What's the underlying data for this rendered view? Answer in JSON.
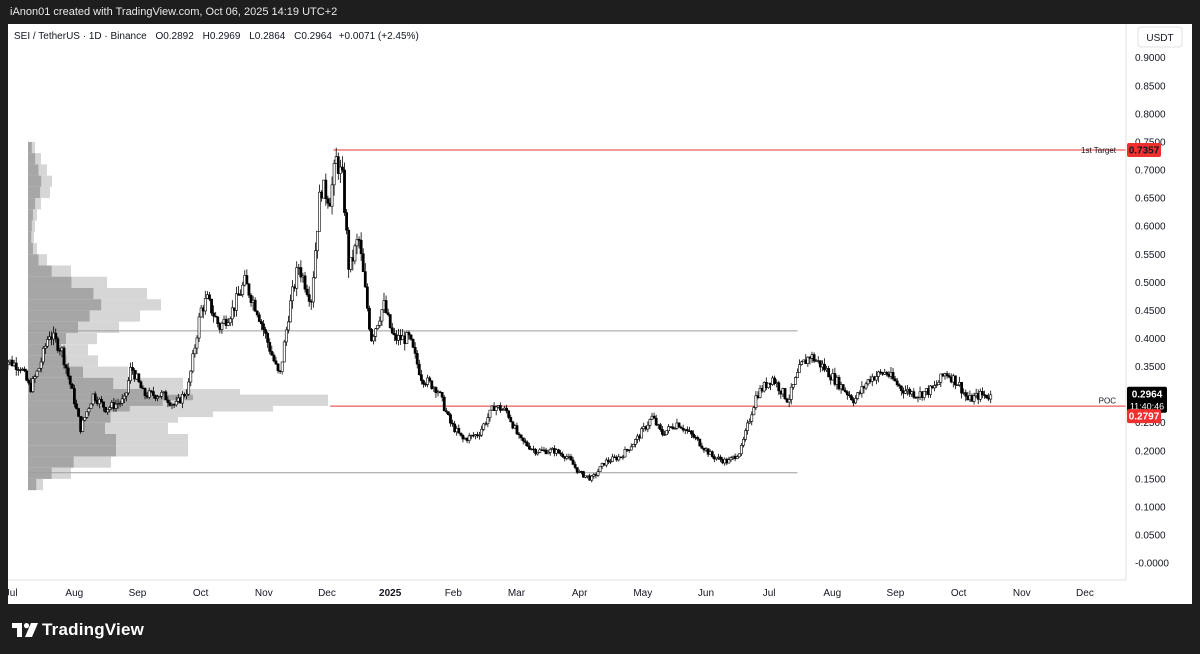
{
  "watermark": "iAnon01 created with TradingView.com, Oct 06, 2025 14:19 UTC+2",
  "brand": {
    "name": "TradingView",
    "logo_icon": "tradingview-logo-icon"
  },
  "colors": {
    "target_line": "#e53935",
    "poc_line": "#e53935",
    "range_line": "#9e9e9e",
    "candle": "#000000",
    "volume_profile_dark": "#9e9e9e",
    "volume_profile_light": "#d6d6d6",
    "current_price_bg": "#000000",
    "level_label_bg": "#f0302e"
  },
  "chart_data": {
    "type": "candlestick",
    "legend": {
      "symbol": "SEI / TetherUS · 1D · Binance",
      "open": "O0.2892",
      "high": "H0.2969",
      "low": "L0.2864",
      "close": "C0.2964",
      "change": "+0.0071 (+2.45%)"
    },
    "currency": "USDT",
    "ylim": [
      -0.03,
      0.96
    ],
    "y_ticks": [
      "0.9000",
      "0.8500",
      "0.8000",
      "0.7500",
      "0.7000",
      "0.6500",
      "0.6000",
      "0.5500",
      "0.5000",
      "0.4500",
      "0.4000",
      "0.3500",
      "0.3000",
      "0.2500",
      "0.2000",
      "0.1500",
      "0.1000",
      "0.0500",
      "-0.0000"
    ],
    "x_ticks": [
      "Jul",
      "Aug",
      "Sep",
      "Oct",
      "Nov",
      "Dec",
      "2025",
      "Feb",
      "Mar",
      "Apr",
      "May",
      "Jun",
      "Jul",
      "Aug",
      "Sep",
      "Oct",
      "Nov",
      "Dec"
    ],
    "x_tick_months": [
      0,
      1,
      2,
      3,
      4,
      5,
      6,
      7,
      8,
      9,
      10,
      11,
      12,
      13,
      14,
      15,
      16,
      17
    ],
    "xlim_months": [
      -0.05,
      17.65
    ],
    "price_path": [
      [
        -0.15,
        0.365
      ],
      [
        0.15,
        0.35
      ],
      [
        0.3,
        0.31
      ],
      [
        0.45,
        0.35
      ],
      [
        0.6,
        0.41
      ],
      [
        0.8,
        0.38
      ],
      [
        1.0,
        0.29
      ],
      [
        1.1,
        0.24
      ],
      [
        1.3,
        0.3
      ],
      [
        1.5,
        0.275
      ],
      [
        1.8,
        0.29
      ],
      [
        1.9,
        0.35
      ],
      [
        2.1,
        0.3
      ],
      [
        2.4,
        0.3
      ],
      [
        2.6,
        0.28
      ],
      [
        2.8,
        0.31
      ],
      [
        3.0,
        0.45
      ],
      [
        3.1,
        0.47
      ],
      [
        3.3,
        0.42
      ],
      [
        3.5,
        0.45
      ],
      [
        3.7,
        0.5
      ],
      [
        3.9,
        0.45
      ],
      [
        4.1,
        0.38
      ],
      [
        4.25,
        0.33
      ],
      [
        4.4,
        0.45
      ],
      [
        4.55,
        0.53
      ],
      [
        4.75,
        0.47
      ],
      [
        4.9,
        0.67
      ],
      [
        5.05,
        0.65
      ],
      [
        5.15,
        0.72
      ],
      [
        5.25,
        0.68
      ],
      [
        5.35,
        0.52
      ],
      [
        5.5,
        0.58
      ],
      [
        5.7,
        0.4
      ],
      [
        5.9,
        0.46
      ],
      [
        6.05,
        0.4
      ],
      [
        6.3,
        0.4
      ],
      [
        6.5,
        0.33
      ],
      [
        6.75,
        0.31
      ],
      [
        6.95,
        0.25
      ],
      [
        7.15,
        0.22
      ],
      [
        7.4,
        0.23
      ],
      [
        7.65,
        0.28
      ],
      [
        7.85,
        0.27
      ],
      [
        8.05,
        0.22
      ],
      [
        8.3,
        0.2
      ],
      [
        8.6,
        0.2
      ],
      [
        8.8,
        0.19
      ],
      [
        9.0,
        0.16
      ],
      [
        9.2,
        0.15
      ],
      [
        9.4,
        0.18
      ],
      [
        9.65,
        0.19
      ],
      [
        9.9,
        0.22
      ],
      [
        10.15,
        0.26
      ],
      [
        10.3,
        0.23
      ],
      [
        10.55,
        0.25
      ],
      [
        10.85,
        0.22
      ],
      [
        11.1,
        0.19
      ],
      [
        11.35,
        0.18
      ],
      [
        11.55,
        0.2
      ],
      [
        11.8,
        0.3
      ],
      [
        12.05,
        0.33
      ],
      [
        12.3,
        0.29
      ],
      [
        12.5,
        0.35
      ],
      [
        12.65,
        0.37
      ],
      [
        12.85,
        0.35
      ],
      [
        13.1,
        0.32
      ],
      [
        13.35,
        0.29
      ],
      [
        13.6,
        0.33
      ],
      [
        13.85,
        0.34
      ],
      [
        14.1,
        0.31
      ],
      [
        14.35,
        0.3
      ],
      [
        14.6,
        0.31
      ],
      [
        14.8,
        0.34
      ],
      [
        15.0,
        0.32
      ],
      [
        15.15,
        0.29
      ],
      [
        15.35,
        0.3
      ],
      [
        15.5,
        0.297
      ]
    ],
    "volume_profile": [
      [
        0.74,
        7
      ],
      [
        0.72,
        13
      ],
      [
        0.7,
        19
      ],
      [
        0.68,
        24
      ],
      [
        0.66,
        22
      ],
      [
        0.64,
        13
      ],
      [
        0.62,
        9
      ],
      [
        0.6,
        7
      ],
      [
        0.58,
        6
      ],
      [
        0.56,
        9
      ],
      [
        0.54,
        19
      ],
      [
        0.52,
        43
      ],
      [
        0.5,
        79
      ],
      [
        0.48,
        119
      ],
      [
        0.46,
        133
      ],
      [
        0.44,
        112
      ],
      [
        0.42,
        91
      ],
      [
        0.4,
        69
      ],
      [
        0.38,
        60
      ],
      [
        0.36,
        70
      ],
      [
        0.34,
        100
      ],
      [
        0.32,
        155
      ],
      [
        0.3,
        212
      ],
      [
        0.29,
        300
      ],
      [
        0.28,
        245
      ],
      [
        0.27,
        185
      ],
      [
        0.26,
        150
      ],
      [
        0.24,
        140
      ],
      [
        0.22,
        160
      ],
      [
        0.2,
        160
      ],
      [
        0.18,
        83
      ],
      [
        0.16,
        43
      ],
      [
        0.14,
        15
      ]
    ],
    "levels": [
      {
        "name": "1st Target",
        "price": 0.7357,
        "label": "0.7357",
        "x_start": 5.1
      },
      {
        "name": "POC",
        "price": 0.2797,
        "label": "0.2797",
        "x_start": 5.05
      }
    ],
    "range_lines": [
      {
        "price": 0.4135,
        "x_end": 12.45
      },
      {
        "price": 0.161,
        "x_end": 12.45
      }
    ],
    "current_price": {
      "label": "0.2964",
      "countdown": "11:40:46",
      "price": 0.2964
    }
  }
}
